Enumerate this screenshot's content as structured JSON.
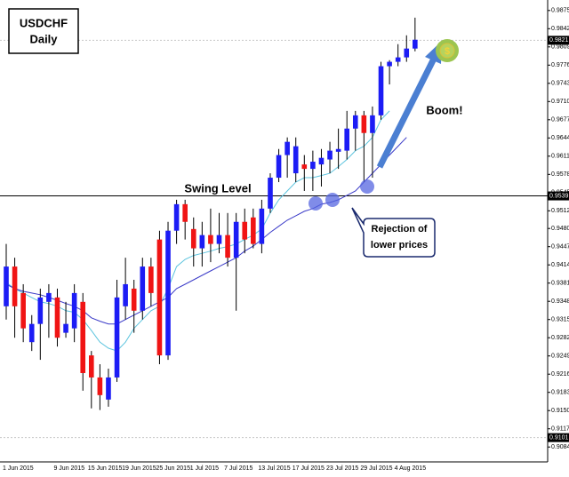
{
  "chart_data": {
    "type": "candlestick",
    "title": "USDCHF",
    "subtitle": "Daily",
    "categories": [
      "1 Jun 2015",
      null,
      null,
      null,
      null,
      null,
      "9 Jun 2015",
      null,
      null,
      null,
      "15 Jun 2015",
      null,
      null,
      null,
      "19 Jun 2015",
      null,
      null,
      null,
      "25 Jun 2015",
      null,
      null,
      null,
      "1 Jul 2015",
      null,
      null,
      null,
      "7 Jul 2015",
      null,
      null,
      null,
      "13 Jul 2015",
      null,
      null,
      null,
      "17 Jul 2015",
      null,
      null,
      null,
      "23 Jul 2015",
      null,
      null,
      null,
      "29 Jul 2015",
      null,
      null,
      null,
      "4 Aug 2015",
      null,
      null
    ],
    "open": [
      0.9339,
      0.9411,
      0.9363,
      0.9274,
      0.9307,
      0.9347,
      0.9355,
      0.9291,
      0.9299,
      0.9347,
      0.925,
      0.921,
      0.917,
      0.921,
      0.9339,
      0.9371,
      0.9331,
      0.9411,
      0.946,
      0.925,
      0.9476,
      0.9524,
      0.9479,
      0.9444,
      0.9468,
      0.9452,
      0.9468,
      0.9427,
      0.9492,
      0.95,
      0.9452,
      0.9516,
      0.9572,
      0.9613,
      0.958,
      0.9596,
      0.9588,
      0.9596,
      0.9605,
      0.9619,
      0.9621,
      0.9661,
      0.9685,
      0.9653,
      0.9685,
      0.9774,
      0.9782,
      0.979,
      0.9806
    ],
    "high": [
      0.9452,
      0.9427,
      0.9379,
      0.9323,
      0.9371,
      0.9379,
      0.9371,
      0.9347,
      0.9379,
      0.9363,
      0.9258,
      0.9234,
      0.9226,
      0.9387,
      0.9427,
      0.9387,
      0.9427,
      0.9427,
      0.9476,
      0.9492,
      0.9532,
      0.9532,
      0.95,
      0.9492,
      0.9516,
      0.9508,
      0.9508,
      0.9508,
      0.9516,
      0.9516,
      0.9532,
      0.958,
      0.9624,
      0.9645,
      0.9645,
      0.9613,
      0.9621,
      0.9624,
      0.9637,
      0.9661,
      0.9693,
      0.9693,
      0.9693,
      0.9701,
      0.9782,
      0.9785,
      0.9814,
      0.983,
      0.9862
    ],
    "low": [
      0.9315,
      0.9282,
      0.9274,
      0.9258,
      0.9242,
      0.9282,
      0.9266,
      0.9282,
      0.9274,
      0.9186,
      0.9154,
      0.9151,
      0.9157,
      0.9202,
      0.9315,
      0.9291,
      0.9315,
      0.9339,
      0.9234,
      0.9242,
      0.9452,
      0.946,
      0.9411,
      0.9411,
      0.9419,
      0.9435,
      0.9411,
      0.9331,
      0.9435,
      0.9444,
      0.9435,
      0.9508,
      0.9564,
      0.9572,
      0.9564,
      0.9548,
      0.9548,
      0.9556,
      0.958,
      0.9588,
      0.9605,
      0.9621,
      0.9564,
      0.9572,
      0.9677,
      0.9741,
      0.9774,
      0.9782,
      0.9801
    ],
    "close": [
      0.9411,
      0.9339,
      0.9299,
      0.9307,
      0.9355,
      0.9363,
      0.9282,
      0.9307,
      0.9363,
      0.9218,
      0.921,
      0.9178,
      0.921,
      0.9355,
      0.9379,
      0.9331,
      0.9411,
      0.9363,
      0.925,
      0.9476,
      0.9524,
      0.9492,
      0.9444,
      0.9468,
      0.9452,
      0.9468,
      0.9427,
      0.9492,
      0.946,
      0.9452,
      0.9516,
      0.9572,
      0.9613,
      0.9637,
      0.9629,
      0.9588,
      0.9601,
      0.9608,
      0.9621,
      0.9624,
      0.9661,
      0.9685,
      0.9653,
      0.9685,
      0.9774,
      0.9782,
      0.979,
      0.9806,
      0.9822
    ],
    "up_color": "#1c1cf5",
    "down_color": "#f01414",
    "wick_color": "#000000",
    "lines": [
      {
        "color": "#5cc4de",
        "values": [
          0.9382,
          0.9371,
          0.9363,
          0.9355,
          0.9347,
          0.9344,
          0.9339,
          0.9331,
          0.9328,
          0.9315,
          0.9295,
          0.9274,
          0.9263,
          0.9258,
          0.9274,
          0.9299,
          0.9315,
          0.9331,
          0.9339,
          0.9371,
          0.9411,
          0.9424,
          0.9431,
          0.9435,
          0.9439,
          0.9444,
          0.9447,
          0.9452,
          0.946,
          0.9468,
          0.9479,
          0.9508,
          0.9532,
          0.9548,
          0.9564,
          0.9572,
          0.9572,
          0.9576,
          0.958,
          0.9592,
          0.9605,
          0.9621,
          0.9629,
          0.9645,
          0.9677,
          0.9693,
          null,
          null,
          null
        ]
      },
      {
        "color": "#3b3bc8",
        "values": [
          0.9379,
          0.9371,
          0.9366,
          0.9363,
          0.936,
          0.9355,
          0.935,
          0.9344,
          0.9339,
          0.9331,
          0.9318,
          0.9312,
          0.9307,
          0.9307,
          0.9315,
          0.9323,
          0.9331,
          0.9339,
          0.9347,
          0.9355,
          0.9371,
          0.9379,
          0.9387,
          0.9395,
          0.9403,
          0.9411,
          0.9419,
          0.9427,
          0.9439,
          0.9448,
          0.946,
          0.9473,
          0.9484,
          0.9495,
          0.9503,
          0.9511,
          0.9516,
          0.9524,
          0.9527,
          0.9532,
          0.954,
          0.9548,
          0.9564,
          0.958,
          0.9596,
          0.9613,
          0.9629,
          0.9645,
          null
        ]
      }
    ],
    "ylim": [
      0.9057,
      0.9894
    ],
    "yticks": [
      0.9875,
      0.9842,
      0.9809,
      0.9776,
      0.9743,
      {
        "value": 0.971,
        "label": "0.9710"
      },
      0.9677,
      0.9644,
      0.9611,
      0.9578,
      0.9545,
      0.9512,
      {
        "value": 0.948,
        "label": "0.9480"
      },
      0.9447,
      0.9414,
      0.9381,
      0.9348,
      0.9315,
      0.9282,
      0.9249,
      0.9216,
      0.9183,
      {
        "value": 0.915,
        "label": "0.9150"
      },
      0.9117,
      0.9084
    ],
    "level_line": 0.9539,
    "price_labels": [
      0.9821,
      0.9101
    ],
    "annotations": {
      "swing": "Swing Level",
      "boom": "Boom!",
      "callout": [
        "Rejection of",
        "lower prices"
      ],
      "coin": "$"
    }
  }
}
